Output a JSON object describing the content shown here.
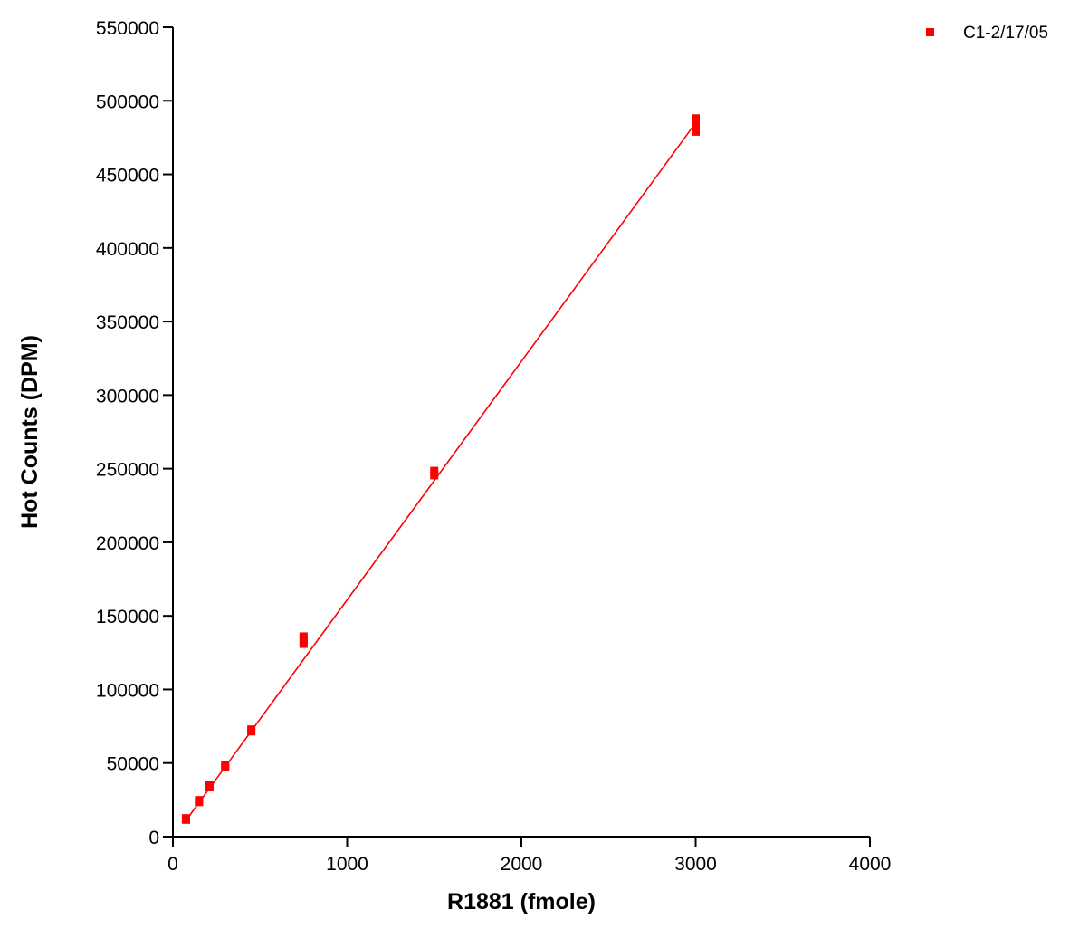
{
  "chart_data": {
    "type": "scatter",
    "xlabel": "R1881 (fmole)",
    "ylabel": "Hot Counts (DPM)",
    "xlim": [
      0,
      4000
    ],
    "ylim": [
      0,
      550000
    ],
    "x_ticks": [
      0,
      1000,
      2000,
      3000,
      4000
    ],
    "y_ticks": [
      0,
      50000,
      100000,
      150000,
      200000,
      250000,
      300000,
      350000,
      400000,
      450000,
      500000,
      550000
    ],
    "x_tick_labels": [
      "0",
      "1000",
      "2000",
      "3000",
      "4000"
    ],
    "y_tick_labels": [
      "0",
      "50000",
      "100000",
      "150000",
      "200000",
      "250000",
      "300000",
      "350000",
      "400000",
      "450000",
      "500000",
      "550000"
    ],
    "grid": false,
    "legend_position": "top-right",
    "series": [
      {
        "name": "C1-2/17/05",
        "color": "#ff0000",
        "marker": "square",
        "points": [
          {
            "x": 75,
            "y": 11500
          },
          {
            "x": 75,
            "y": 12500
          },
          {
            "x": 150,
            "y": 23500
          },
          {
            "x": 150,
            "y": 24800
          },
          {
            "x": 210,
            "y": 33500
          },
          {
            "x": 210,
            "y": 34800
          },
          {
            "x": 300,
            "y": 47500
          },
          {
            "x": 300,
            "y": 48800
          },
          {
            "x": 450,
            "y": 71500
          },
          {
            "x": 450,
            "y": 72800
          },
          {
            "x": 750,
            "y": 131000
          },
          {
            "x": 750,
            "y": 133500
          },
          {
            "x": 750,
            "y": 136000
          },
          {
            "x": 1500,
            "y": 245500
          },
          {
            "x": 1500,
            "y": 248500
          },
          {
            "x": 3000,
            "y": 479000
          },
          {
            "x": 3000,
            "y": 483000
          },
          {
            "x": 3000,
            "y": 488000
          }
        ],
        "fit_line": {
          "x": [
            75,
            3000
          ],
          "y": [
            11000,
            485000
          ]
        }
      }
    ]
  }
}
